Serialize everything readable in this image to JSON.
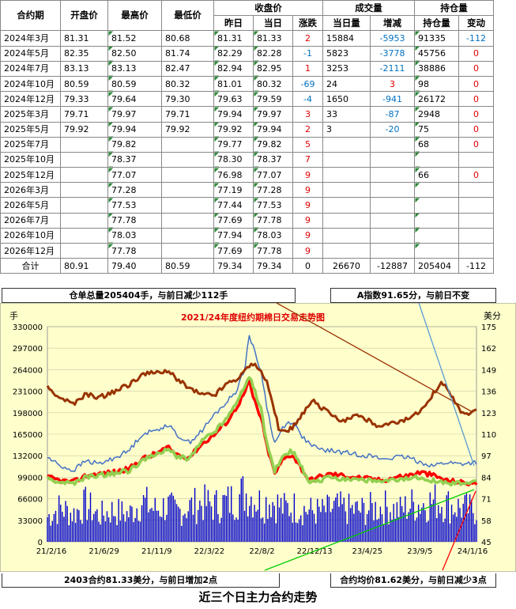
{
  "table": {
    "headers": {
      "contract": "合约期",
      "open": "开盘价",
      "high": "最高价",
      "low": "最低价",
      "settle_group": "收盘价",
      "prev": "昨日",
      "today": "当日",
      "change": "涨跌",
      "volume_group": "成交量",
      "vol_today": "当日量",
      "vol_change": "增减",
      "oi_group": "持仓量",
      "oi": "持仓量",
      "oi_change": "变动"
    },
    "rows": [
      {
        "contract": "2024年3月",
        "open": "81.31",
        "high": "81.52",
        "low": "80.68",
        "prev": "81.31",
        "today": "81.33",
        "change": "2",
        "vol": "15884",
        "vol_change": "-5953",
        "oi": "91335",
        "oi_change": "-112"
      },
      {
        "contract": "2024年5月",
        "open": "82.35",
        "high": "82.50",
        "low": "81.74",
        "prev": "82.29",
        "today": "82.28",
        "change": "-1",
        "vol": "5823",
        "vol_change": "-3778",
        "oi": "45756",
        "oi_change": "0"
      },
      {
        "contract": "2024年7月",
        "open": "83.13",
        "high": "83.13",
        "low": "82.47",
        "prev": "82.94",
        "today": "82.95",
        "change": "1",
        "vol": "3253",
        "vol_change": "-2111",
        "oi": "38886",
        "oi_change": "0"
      },
      {
        "contract": "2024年10月",
        "open": "80.59",
        "high": "80.59",
        "low": "80.32",
        "prev": "81.01",
        "today": "80.32",
        "change": "-69",
        "vol": "24",
        "vol_change": "3",
        "oi": "98",
        "oi_change": "0"
      },
      {
        "contract": "2024年12月",
        "open": "79.33",
        "high": "79.64",
        "low": "79.30",
        "prev": "79.63",
        "today": "79.59",
        "change": "-4",
        "vol": "1650",
        "vol_change": "-941",
        "oi": "26172",
        "oi_change": "0"
      },
      {
        "contract": "2025年3月",
        "open": "79.71",
        "high": "79.97",
        "low": "79.71",
        "prev": "79.94",
        "today": "79.97",
        "change": "3",
        "vol": "33",
        "vol_change": "-87",
        "oi": "2948",
        "oi_change": "0"
      },
      {
        "contract": "2025年5月",
        "open": "79.92",
        "high": "79.94",
        "low": "79.92",
        "prev": "79.92",
        "today": "79.94",
        "change": "2",
        "vol": "3",
        "vol_change": "-20",
        "oi": "75",
        "oi_change": "0"
      },
      {
        "contract": "2025年7月",
        "open": "",
        "high": "79.82",
        "low": "",
        "prev": "79.77",
        "today": "79.82",
        "change": "5",
        "vol": "",
        "vol_change": "",
        "oi": "68",
        "oi_change": "0"
      },
      {
        "contract": "2025年10月",
        "open": "",
        "high": "78.37",
        "low": "",
        "prev": "78.30",
        "today": "78.37",
        "change": "7",
        "vol": "",
        "vol_change": "",
        "oi": "",
        "oi_change": ""
      },
      {
        "contract": "2025年12月",
        "open": "",
        "high": "77.07",
        "low": "",
        "prev": "76.98",
        "today": "77.07",
        "change": "9",
        "vol": "",
        "vol_change": "",
        "oi": "66",
        "oi_change": "0"
      },
      {
        "contract": "2026年3月",
        "open": "",
        "high": "77.28",
        "low": "",
        "prev": "77.19",
        "today": "77.28",
        "change": "9",
        "vol": "",
        "vol_change": "",
        "oi": "",
        "oi_change": ""
      },
      {
        "contract": "2026年5月",
        "open": "",
        "high": "77.53",
        "low": "",
        "prev": "77.44",
        "today": "77.53",
        "change": "9",
        "vol": "",
        "vol_change": "",
        "oi": "",
        "oi_change": ""
      },
      {
        "contract": "2026年7月",
        "open": "",
        "high": "77.78",
        "low": "",
        "prev": "77.69",
        "today": "77.78",
        "change": "9",
        "vol": "",
        "vol_change": "",
        "oi": "",
        "oi_change": ""
      },
      {
        "contract": "2026年10月",
        "open": "",
        "high": "78.03",
        "low": "",
        "prev": "77.94",
        "today": "78.03",
        "change": "9",
        "vol": "",
        "vol_change": "",
        "oi": "",
        "oi_change": ""
      },
      {
        "contract": "2026年12月",
        "open": "",
        "high": "77.78",
        "low": "",
        "prev": "77.69",
        "today": "77.78",
        "change": "9",
        "vol": "",
        "vol_change": "",
        "oi": "",
        "oi_change": ""
      }
    ],
    "total": {
      "contract": "合计",
      "open": "80.91",
      "high": "79.40",
      "low": "80.59",
      "prev": "79.34",
      "today": "79.34",
      "change": "0",
      "vol": "26670",
      "vol_change": "-12887",
      "oi": "205404",
      "oi_change": "-112"
    }
  },
  "notes": {
    "warehouse": "仓单总量205404手，与前日减少112手",
    "a_index": "A指数91.65分，与前日不变",
    "front_contract": "2403合约81.33美分，与前日增加2点",
    "avg_contract": "合约均价81.62美分，与前日减少3点"
  },
  "caption": "近三个日主力合约走势",
  "colors": {
    "volume": "#0000cc",
    "price_red": "#ff0000",
    "price_green": "#92d050",
    "price_blue": "#4472c4",
    "index_brown": "#993300",
    "bg": "#ffffcc"
  },
  "chart_data": {
    "type": "line",
    "title": "2021/24年度纽约期棉日交易走势图",
    "left_unit": "手",
    "right_unit": "美分",
    "ylim_left": [
      0,
      330000
    ],
    "ylim_right": [
      45,
      175
    ],
    "left_ticks": [
      "330000",
      "297000",
      "264000",
      "231000",
      "198000",
      "165000",
      "132000",
      "99000",
      "66000",
      "33000",
      "0"
    ],
    "right_ticks": [
      "175",
      "162",
      "149",
      "136",
      "123",
      "110",
      "97",
      "84",
      "71",
      "58",
      "45"
    ],
    "x_ticks": [
      "21/2/16",
      "21/6/29",
      "21/11/9",
      "22/3/22",
      "22/8/2",
      "22/12/13",
      "23/4/25",
      "23/9/5",
      "24/1/16"
    ],
    "series": [
      {
        "key": "brown",
        "axis": "right",
        "points": [
          [
            0,
            138
          ],
          [
            0.03,
            132
          ],
          [
            0.06,
            128
          ],
          [
            0.09,
            134
          ],
          [
            0.12,
            132
          ],
          [
            0.15,
            135
          ],
          [
            0.19,
            140
          ],
          [
            0.22,
            146
          ],
          [
            0.25,
            147
          ],
          [
            0.28,
            148
          ],
          [
            0.3,
            144
          ],
          [
            0.33,
            138
          ],
          [
            0.36,
            134
          ],
          [
            0.39,
            134
          ],
          [
            0.42,
            141
          ],
          [
            0.45,
            145
          ],
          [
            0.47,
            152
          ],
          [
            0.49,
            151
          ],
          [
            0.51,
            143
          ],
          [
            0.53,
            124
          ],
          [
            0.54,
            112
          ],
          [
            0.56,
            112
          ],
          [
            0.58,
            116
          ],
          [
            0.6,
            124
          ],
          [
            0.62,
            130
          ],
          [
            0.64,
            126
          ],
          [
            0.66,
            122
          ],
          [
            0.69,
            118
          ],
          [
            0.72,
            122
          ],
          [
            0.75,
            118
          ],
          [
            0.77,
            114
          ],
          [
            0.8,
            116
          ],
          [
            0.83,
            118
          ],
          [
            0.86,
            122
          ],
          [
            0.88,
            128
          ],
          [
            0.9,
            135
          ],
          [
            0.92,
            141
          ],
          [
            0.94,
            134
          ],
          [
            0.96,
            124
          ],
          [
            0.98,
            122
          ],
          [
            1.0,
            124
          ]
        ]
      },
      {
        "key": "blue",
        "axis": "right",
        "points": [
          [
            0,
            96
          ],
          [
            0.03,
            91
          ],
          [
            0.06,
            88
          ],
          [
            0.09,
            94
          ],
          [
            0.12,
            92
          ],
          [
            0.15,
            95
          ],
          [
            0.19,
            100
          ],
          [
            0.22,
            110
          ],
          [
            0.25,
            112
          ],
          [
            0.28,
            116
          ],
          [
            0.3,
            110
          ],
          [
            0.33,
            105
          ],
          [
            0.36,
            112
          ],
          [
            0.39,
            122
          ],
          [
            0.42,
            130
          ],
          [
            0.44,
            136
          ],
          [
            0.46,
            150
          ],
          [
            0.47,
            170
          ],
          [
            0.48,
            162
          ],
          [
            0.5,
            146
          ],
          [
            0.51,
            128
          ],
          [
            0.53,
            104
          ],
          [
            0.55,
            115
          ],
          [
            0.57,
            118
          ],
          [
            0.59,
            110
          ],
          [
            0.61,
            104
          ],
          [
            0.63,
            101
          ],
          [
            0.66,
            100
          ],
          [
            0.69,
            99
          ],
          [
            0.72,
            98
          ],
          [
            0.75,
            97
          ],
          [
            0.78,
            95
          ],
          [
            0.81,
            96
          ],
          [
            0.84,
            96
          ],
          [
            0.87,
            93
          ],
          [
            0.9,
            91
          ],
          [
            0.93,
            93
          ],
          [
            0.96,
            92
          ],
          [
            1.0,
            93
          ]
        ]
      },
      {
        "key": "red",
        "axis": "right",
        "points": [
          [
            0,
            84
          ],
          [
            0.03,
            82
          ],
          [
            0.06,
            81
          ],
          [
            0.09,
            85
          ],
          [
            0.12,
            86
          ],
          [
            0.15,
            87
          ],
          [
            0.19,
            89
          ],
          [
            0.22,
            95
          ],
          [
            0.25,
            98
          ],
          [
            0.28,
            102
          ],
          [
            0.3,
            98
          ],
          [
            0.33,
            96
          ],
          [
            0.36,
            104
          ],
          [
            0.39,
            110
          ],
          [
            0.42,
            118
          ],
          [
            0.44,
            126
          ],
          [
            0.46,
            135
          ],
          [
            0.47,
            142
          ],
          [
            0.48,
            132
          ],
          [
            0.5,
            118
          ],
          [
            0.51,
            104
          ],
          [
            0.53,
            86
          ],
          [
            0.55,
            95
          ],
          [
            0.57,
            98
          ],
          [
            0.59,
            90
          ],
          [
            0.61,
            82
          ],
          [
            0.63,
            84
          ],
          [
            0.66,
            86
          ],
          [
            0.69,
            85
          ],
          [
            0.72,
            84
          ],
          [
            0.75,
            83
          ],
          [
            0.78,
            82
          ],
          [
            0.81,
            84
          ],
          [
            0.84,
            85
          ],
          [
            0.87,
            87
          ],
          [
            0.9,
            85
          ],
          [
            0.93,
            82
          ],
          [
            0.96,
            81
          ],
          [
            1.0,
            80
          ]
        ]
      },
      {
        "key": "green",
        "axis": "right",
        "points": [
          [
            0,
            83
          ],
          [
            0.03,
            81
          ],
          [
            0.06,
            80
          ],
          [
            0.09,
            84
          ],
          [
            0.12,
            85
          ],
          [
            0.15,
            86
          ],
          [
            0.19,
            88
          ],
          [
            0.22,
            94
          ],
          [
            0.25,
            97
          ],
          [
            0.28,
            101
          ],
          [
            0.3,
            97
          ],
          [
            0.33,
            95
          ],
          [
            0.36,
            106
          ],
          [
            0.39,
            112
          ],
          [
            0.42,
            120
          ],
          [
            0.44,
            130
          ],
          [
            0.46,
            138
          ],
          [
            0.47,
            146
          ],
          [
            0.48,
            138
          ],
          [
            0.5,
            124
          ],
          [
            0.51,
            106
          ],
          [
            0.53,
            88
          ],
          [
            0.55,
            97
          ],
          [
            0.57,
            100
          ],
          [
            0.59,
            91
          ],
          [
            0.61,
            80
          ],
          [
            0.63,
            82
          ],
          [
            0.66,
            84
          ],
          [
            0.69,
            83
          ],
          [
            0.72,
            83
          ],
          [
            0.75,
            82
          ],
          [
            0.78,
            81
          ],
          [
            0.81,
            82
          ],
          [
            0.84,
            83
          ],
          [
            0.87,
            84
          ],
          [
            0.9,
            82
          ],
          [
            0.93,
            80
          ],
          [
            0.96,
            80
          ],
          [
            1.0,
            81
          ]
        ]
      }
    ],
    "volume": {
      "axis": "left",
      "points": [
        [
          0,
          40000
        ],
        [
          0.03,
          55000
        ],
        [
          0.06,
          45000
        ],
        [
          0.09,
          60000
        ],
        [
          0.12,
          42000
        ],
        [
          0.15,
          50000
        ],
        [
          0.19,
          44000
        ],
        [
          0.22,
          65000
        ],
        [
          0.25,
          52000
        ],
        [
          0.28,
          58000
        ],
        [
          0.3,
          48000
        ],
        [
          0.33,
          56000
        ],
        [
          0.36,
          62000
        ],
        [
          0.39,
          58000
        ],
        [
          0.42,
          64000
        ],
        [
          0.44,
          70000
        ],
        [
          0.46,
          80000
        ],
        [
          0.48,
          72000
        ],
        [
          0.5,
          60000
        ],
        [
          0.52,
          68000
        ],
        [
          0.55,
          54000
        ],
        [
          0.58,
          56000
        ],
        [
          0.61,
          50000
        ],
        [
          0.64,
          48000
        ],
        [
          0.67,
          55000
        ],
        [
          0.7,
          52000
        ],
        [
          0.73,
          50000
        ],
        [
          0.76,
          54000
        ],
        [
          0.79,
          56000
        ],
        [
          0.82,
          50000
        ],
        [
          0.85,
          60000
        ],
        [
          0.88,
          62000
        ],
        [
          0.91,
          66000
        ],
        [
          0.94,
          58000
        ],
        [
          0.97,
          54000
        ],
        [
          1.0,
          50000
        ]
      ]
    }
  }
}
